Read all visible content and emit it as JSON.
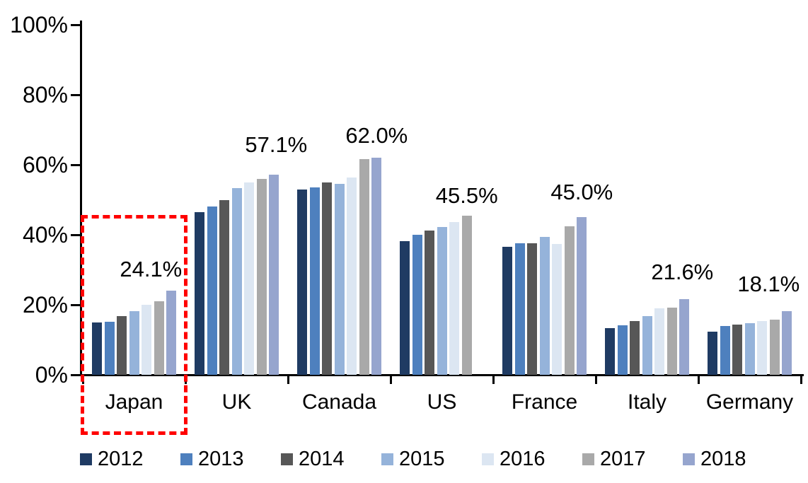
{
  "chart_data": {
    "type": "bar",
    "title": "",
    "unit": "%",
    "categories": [
      "Japan",
      "UK",
      "Canada",
      "US",
      "France",
      "Italy",
      "Germany"
    ],
    "series": [
      {
        "name": "2012",
        "color": "#1F3B63",
        "values": [
          14.9,
          46.4,
          52.9,
          38.2,
          36.6,
          13.3,
          12.3
        ]
      },
      {
        "name": "2013",
        "color": "#4E80BE",
        "values": [
          15.1,
          48.0,
          53.6,
          40.0,
          37.6,
          14.1,
          13.9
        ]
      },
      {
        "name": "2014",
        "color": "#575757",
        "values": [
          16.8,
          50.0,
          55.0,
          41.2,
          37.6,
          15.3,
          14.3
        ]
      },
      {
        "name": "2015",
        "color": "#95B3DA",
        "values": [
          18.2,
          53.3,
          54.5,
          42.2,
          39.4,
          16.8,
          14.7
        ]
      },
      {
        "name": "2016",
        "color": "#DCE6F2",
        "values": [
          19.9,
          55.0,
          56.3,
          43.6,
          37.4,
          19.0,
          15.3
        ]
      },
      {
        "name": "2017",
        "color": "#A9A9A9",
        "values": [
          21.1,
          56.0,
          61.7,
          45.5,
          42.4,
          19.2,
          15.8
        ]
      },
      {
        "name": "2018",
        "color": "#96A5CE",
        "values": [
          24.1,
          57.1,
          62.0,
          null,
          45.0,
          21.6,
          18.1
        ]
      }
    ],
    "annotations": [
      {
        "category": "Japan",
        "text": "24.1%"
      },
      {
        "category": "UK",
        "text": "57.1%"
      },
      {
        "category": "Canada",
        "text": "62.0%"
      },
      {
        "category": "US",
        "text": "45.5%"
      },
      {
        "category": "France",
        "text": "45.0%"
      },
      {
        "category": "Italy",
        "text": "21.6%"
      },
      {
        "category": "Germany",
        "text": "18.1%"
      }
    ],
    "y_axis": {
      "min": 0,
      "max": 100,
      "tick_labels": [
        "0%",
        "20%",
        "40%",
        "60%",
        "80%",
        "100%"
      ],
      "grid": false
    },
    "x_axis": {
      "label": ""
    },
    "legend": {
      "position": "bottom",
      "entries": [
        "2012",
        "2013",
        "2014",
        "2015",
        "2016",
        "2017",
        "2018"
      ]
    },
    "highlight": {
      "category": "Japan",
      "shape": "dashed-rectangle",
      "color": "#FF0000"
    },
    "colors": {
      "axis": "#000000",
      "text": "#000000",
      "background": "#FFFFFF",
      "highlight": "#FF0000"
    }
  }
}
